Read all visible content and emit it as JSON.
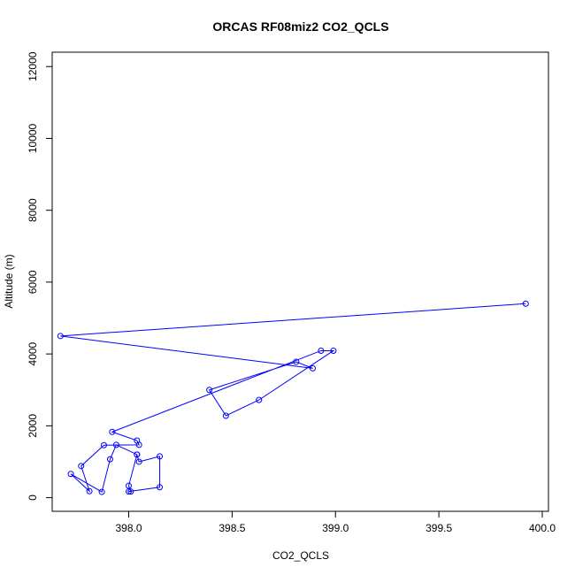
{
  "chart_data": {
    "type": "line",
    "title": "ORCAS RF08miz2 CO2_QCLS",
    "xlabel": "CO2_QCLS",
    "ylabel": "Altitude (m)",
    "xlim": [
      397.63,
      400.03
    ],
    "ylim": [
      -380,
      12400
    ],
    "x_ticks": [
      "398.0",
      "398.5",
      "399.0",
      "399.5",
      "400.0"
    ],
    "y_ticks": [
      "0",
      "2000",
      "4000",
      "6000",
      "8000",
      "10000",
      "12000"
    ],
    "grid": false,
    "legend": "none",
    "marker": "open-circle",
    "color": "#0000ff",
    "series": [
      {
        "x": [
          399.92,
          397.67,
          398.89,
          398.81,
          398.39,
          398.47,
          398.63,
          398.99,
          398.93,
          397.92,
          398.04,
          398.05,
          397.88,
          397.77,
          397.81,
          397.72,
          397.87,
          397.91,
          397.94,
          398.04,
          398.05,
          398.15,
          398.15,
          398.0,
          398.01,
          398.0,
          398.04
        ],
        "y": [
          5400,
          4500,
          3600,
          3780,
          3000,
          2280,
          2720,
          4090,
          4090,
          1830,
          1590,
          1470,
          1460,
          880,
          180,
          660,
          160,
          1070,
          1470,
          1200,
          1000,
          1150,
          290,
          170,
          170,
          330,
          1200
        ]
      }
    ]
  }
}
